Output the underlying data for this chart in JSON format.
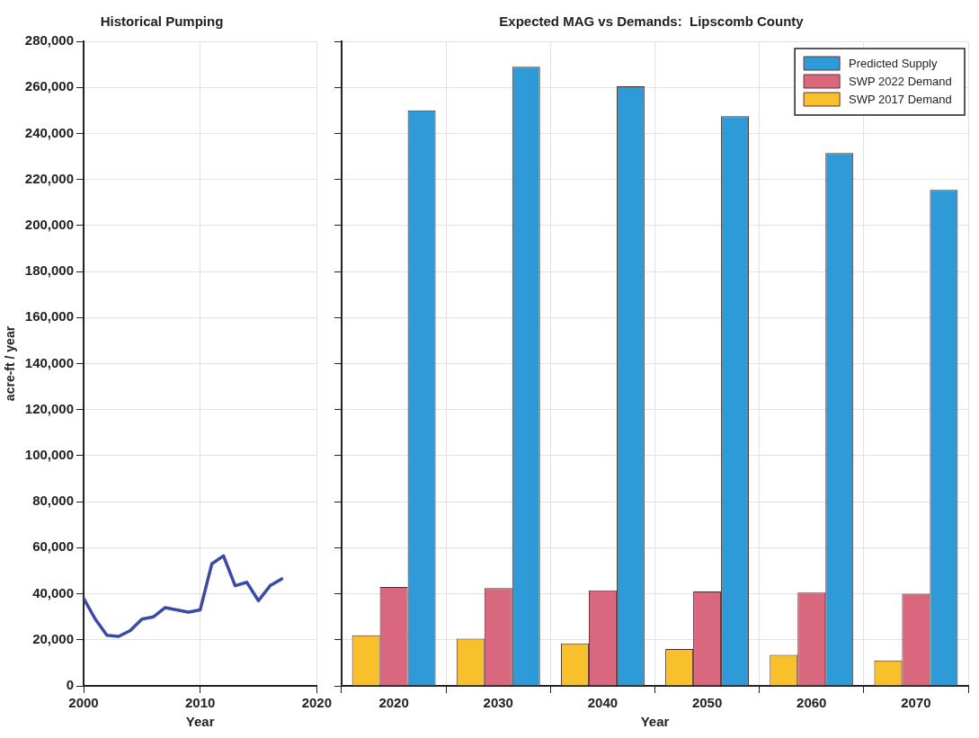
{
  "chart_data": [
    {
      "type": "line",
      "title": "Historical Pumping",
      "xlabel": "Year",
      "ylabel": "acre-ft / year",
      "x": [
        2000,
        2001,
        2002,
        2003,
        2004,
        2005,
        2006,
        2007,
        2008,
        2009,
        2010,
        2011,
        2012,
        2013,
        2014,
        2015,
        2016,
        2017
      ],
      "series": [
        {
          "color": "#3b4aa8",
          "values": [
            38000,
            29000,
            22000,
            21500,
            24000,
            29000,
            30000,
            34000,
            33000,
            32000,
            33000,
            53000,
            56500,
            43500,
            45000,
            37000,
            43500,
            46500
          ]
        }
      ],
      "xlim": [
        2000,
        2020
      ],
      "xticks": [
        2000,
        2010,
        2020
      ],
      "ylim": [
        0,
        280000
      ],
      "yticks": [
        0,
        {
          "value": 20000,
          "label": "20,000"
        },
        {
          "value": 40000,
          "label": "40,000"
        },
        {
          "value": 60000,
          "label": "60,000"
        },
        {
          "value": 80000,
          "label": "80,000"
        },
        {
          "value": 100000,
          "label": "100,000"
        },
        {
          "value": 120000,
          "label": "120,000"
        },
        {
          "value": 140000,
          "label": "140,000"
        },
        {
          "value": 160000,
          "label": "160,000"
        },
        {
          "value": 180000,
          "label": "180,000"
        },
        {
          "value": 200000,
          "label": "200,000"
        },
        {
          "value": 220000,
          "label": "220,000"
        },
        {
          "value": 240000,
          "label": "240,000"
        },
        {
          "value": 260000,
          "label": "260,000"
        },
        {
          "value": 280000,
          "label": "280,000"
        }
      ],
      "grid": true,
      "marker": "none"
    },
    {
      "type": "bar",
      "title": "Expected MAG vs Demands:  Lipscomb County",
      "xlabel": "Year",
      "categories": [
        "2020",
        "2030",
        "2040",
        "2050",
        "2060",
        "2070"
      ],
      "series": [
        {
          "name": "SWP 2017 Demand",
          "color": "#f8c02a",
          "values": [
            22000,
            20500,
            18500,
            16000,
            13500,
            11000
          ]
        },
        {
          "name": "SWP 2022 Demand",
          "color": "#d9687f",
          "values": [
            43000,
            42500,
            41500,
            41000,
            40500,
            40000
          ]
        },
        {
          "name": "Predicted Supply",
          "color": "#2f9ad8",
          "values": [
            250000,
            269000,
            260500,
            247500,
            231500,
            215500
          ]
        }
      ],
      "ylim": [
        0,
        280000
      ],
      "yticks": [
        0,
        20000,
        40000,
        60000,
        80000,
        100000,
        120000,
        140000,
        160000,
        180000,
        200000,
        220000,
        240000,
        260000,
        280000
      ],
      "tick_labels": "x",
      "grid": true,
      "legend": "top right"
    }
  ]
}
